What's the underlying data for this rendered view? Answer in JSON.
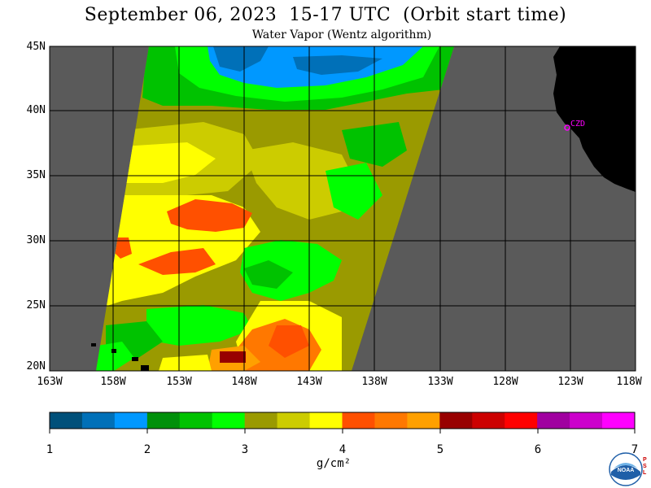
{
  "header": {
    "title": "September 06, 2023  15-17 UTC  (Orbit start time)",
    "subtitle": "Water Vapor (Wentz algorithm)"
  },
  "map": {
    "lat_labels": [
      "45N",
      "40N",
      "35N",
      "30N",
      "25N",
      "20N"
    ],
    "lon_labels": [
      "163W",
      "158W",
      "153W",
      "148W",
      "143W",
      "138W",
      "133W",
      "128W",
      "123W",
      "118W"
    ],
    "station_label": "CZD",
    "background_color": "#5a5a5a",
    "land_color": "#000000",
    "grid_color": "#000000"
  },
  "colorbar": {
    "tick_labels": [
      "1",
      "2",
      "3",
      "4",
      "5",
      "6",
      "7"
    ],
    "units": "g/cm²",
    "colors": [
      "#00507a",
      "#0070b8",
      "#0098ff",
      "#00900a",
      "#00c200",
      "#00ff00",
      "#9a9a00",
      "#cccc00",
      "#ffff00",
      "#ff5000",
      "#ff7800",
      "#ffa000",
      "#980000",
      "#cc0000",
      "#ff0000",
      "#a000a0",
      "#cc00cc",
      "#ff00ff"
    ]
  },
  "logo": {
    "text": "NOAA",
    "side_text": "P\nS\nL"
  }
}
